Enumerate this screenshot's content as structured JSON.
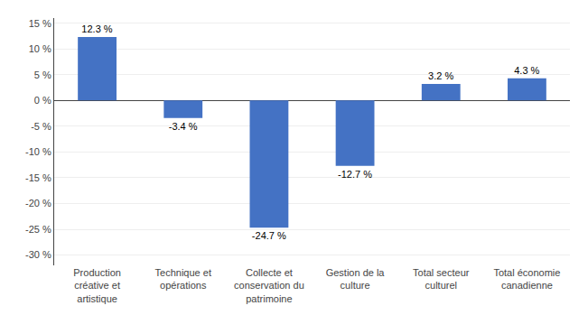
{
  "chart_data": {
    "type": "bar",
    "categories": [
      "Production\ncréative et\nartistique",
      "Technique et\nopérations",
      "Collecte et\nconservation du\npatrimoine",
      "Gestion de la\nculture",
      "Total secteur\nculturel",
      "Total économie\ncanadienne"
    ],
    "values": [
      12.3,
      -3.4,
      -24.7,
      -12.7,
      3.2,
      4.3
    ],
    "value_labels": [
      "12.3 %",
      "-3.4 %",
      "-24.7 %",
      "-12.7 %",
      "3.2 %",
      "4.3 %"
    ],
    "data_labels": true,
    "color": "#4472c4",
    "ylim": [
      -32,
      16
    ],
    "yticks": [
      {
        "value": -30,
        "label": "-30 %"
      },
      {
        "value": -25,
        "label": "-25 %"
      },
      {
        "value": -20,
        "label": "-20 %"
      },
      {
        "value": -15,
        "label": "-15 %"
      },
      {
        "value": -10,
        "label": "-10 %"
      },
      {
        "value": -5,
        "label": "-5 %"
      },
      {
        "value": 0,
        "label": "0 %"
      },
      {
        "value": 5,
        "label": "5 %"
      },
      {
        "value": 10,
        "label": "10 %"
      },
      {
        "value": 15,
        "label": "15 %"
      }
    ],
    "grid": true
  }
}
